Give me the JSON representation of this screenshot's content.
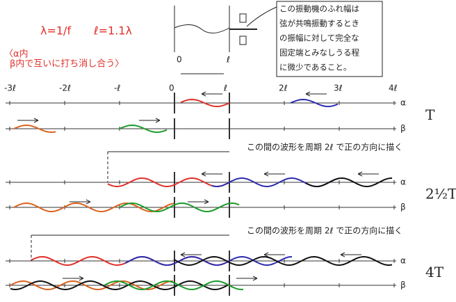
{
  "formula": {
    "lambda": "λ=1/f",
    "length": "ℓ=1.1λ"
  },
  "note": [
    "〈α内",
    "β内で互いに打ち消し合う〉"
  ],
  "apparatus_labels": [
    "0",
    "ℓ"
  ],
  "callout": [
    "この振動機のふれ幅は",
    "弦が共鳴振動するとき",
    "の振幅に対して完全な",
    "固定端とみなしうる程",
    "に微少であること。"
  ],
  "axis_labels": [
    "-3ℓ",
    "-2ℓ",
    "-ℓ",
    "0",
    "ℓ",
    "2ℓ",
    "3ℓ",
    "4ℓ"
  ],
  "rows": [
    {
      "time": "T",
      "alpha": "α",
      "beta": "β"
    },
    {
      "time": "2½T",
      "alpha": "α",
      "beta": "β"
    },
    {
      "time": "4T",
      "alpha": "α",
      "beta": "β"
    }
  ],
  "annotations": [
    "この間の波形を周期 2ℓ で正の方向に描く",
    "この間の波形を周期 2ℓ で正の方向に描く"
  ]
}
